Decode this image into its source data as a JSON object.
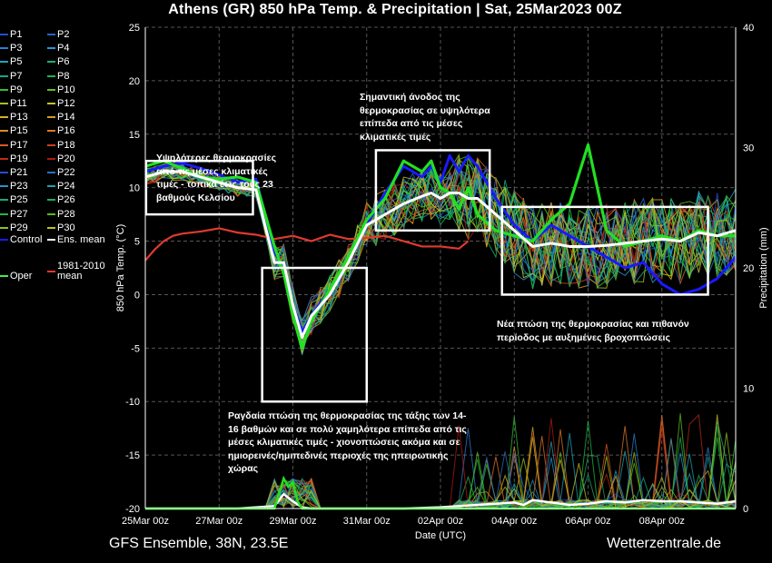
{
  "title": "Athens  (GR)  850 hPa Temp. & Precipitation | Sat, 25Mar2023 00Z",
  "footer": {
    "left": "GFS Ensemble, 38N, 23.5E",
    "right": "Wetterzentrale.de"
  },
  "legend": [
    {
      "label": "P1",
      "color": "#1f4fd6"
    },
    {
      "label": "P2",
      "color": "#2a62c8"
    },
    {
      "label": "P3",
      "color": "#2b7fd1"
    },
    {
      "label": "P4",
      "color": "#2a95d8"
    },
    {
      "label": "P5",
      "color": "#1aa6b8"
    },
    {
      "label": "P6",
      "color": "#17b07a"
    },
    {
      "label": "P7",
      "color": "#16a690"
    },
    {
      "label": "P8",
      "color": "#1cb84a"
    },
    {
      "label": "P9",
      "color": "#30c030"
    },
    {
      "label": "P10",
      "color": "#5ec020"
    },
    {
      "label": "P11",
      "color": "#9fc020"
    },
    {
      "label": "P12",
      "color": "#c8c030"
    },
    {
      "label": "P13",
      "color": "#d8b020"
    },
    {
      "label": "P14",
      "color": "#d89a20"
    },
    {
      "label": "P15",
      "color": "#d88a30"
    },
    {
      "label": "P16",
      "color": "#e07828"
    },
    {
      "label": "P17",
      "color": "#d85a20"
    },
    {
      "label": "P18",
      "color": "#c84020"
    },
    {
      "label": "P19",
      "color": "#c02818"
    },
    {
      "label": "P20",
      "color": "#b01818"
    },
    {
      "label": "P21",
      "color": "#2050d0"
    },
    {
      "label": "P22",
      "color": "#2a70c0"
    },
    {
      "label": "P23",
      "color": "#2a90c8"
    },
    {
      "label": "P24",
      "color": "#20a0b0"
    },
    {
      "label": "P25",
      "color": "#18a880"
    },
    {
      "label": "P26",
      "color": "#18b060"
    },
    {
      "label": "P27",
      "color": "#20b840"
    },
    {
      "label": "P28",
      "color": "#50c020"
    },
    {
      "label": "P29",
      "color": "#90c020"
    },
    {
      "label": "P30",
      "color": "#c0c020"
    },
    {
      "label": "Control",
      "color": "#1a1aff"
    },
    {
      "label": "Ens. mean",
      "color": "#ffffff"
    },
    {
      "label": "Oper",
      "color": "#44ee44"
    },
    {
      "label": "1981-2010 mean",
      "color": "#e03a30"
    }
  ],
  "annotations": {
    "a1": "Υψηλότερες θερμοκρασίες από τις μέσες κλιματικές τιμές - τοπικά έως τους 23 βαθμούς Κελσίου",
    "a2": "Σημαντική άνοδος της θερμοκρασίας σε υψηλότερα επίπεδα από τις μέσες κλιματικές τιμές",
    "a3": "Ραγδαία πτώση της θερμοκρασίας της τάξης των 14-16 βαθμών και σε πολύ χαμηλότερα επίπεδα από τις μέσες κλιματικές τιμές - χιονοπτώσεις ακόμα και σε ημιορεινές/ημιπεδινές περιοχές της ηπειρωτικής χώρας",
    "a4": "Νέα πτώση της θερμοκρασίας και πιθανόν περίοδος με αυξημένες βροχοπτώσεις"
  },
  "chart_data": {
    "type": "line",
    "xlabel": "Date (UTC)",
    "ylabel": "850 hPa Temp. (°C)",
    "y2label": "Precipitation (mm)",
    "ylim": [
      -20,
      25
    ],
    "y2lim": [
      0,
      40
    ],
    "xlim": [
      0,
      384
    ],
    "x_unit": "hours since 25Mar 00z",
    "xticks": [
      {
        "x": 0,
        "label": "25Mar 00z"
      },
      {
        "x": 48,
        "label": "27Mar 00z"
      },
      {
        "x": 96,
        "label": "29Mar 00z"
      },
      {
        "x": 144,
        "label": "31Mar 00z"
      },
      {
        "x": 192,
        "label": "02Apr 00z"
      },
      {
        "x": 240,
        "label": "04Apr 00z"
      },
      {
        "x": 288,
        "label": "06Apr 00z"
      },
      {
        "x": 336,
        "label": "08Apr 00z"
      }
    ],
    "yticks": [
      25,
      20,
      15,
      10,
      5,
      0,
      -5,
      -10,
      -15,
      -20
    ],
    "y2ticks": [
      40,
      30,
      20,
      10,
      0
    ],
    "grid": true,
    "series": [
      {
        "name": "1981-2010 mean",
        "color": "#e03a30",
        "width": 2.2,
        "x": [
          0,
          6,
          12,
          18,
          24,
          36,
          48,
          60,
          72,
          84,
          96,
          108,
          120,
          132,
          144,
          156,
          168,
          180,
          192,
          204,
          210
        ],
        "y": [
          3.2,
          4.2,
          5.0,
          5.5,
          5.7,
          5.9,
          6.2,
          5.8,
          5.6,
          5.2,
          5.5,
          5.0,
          5.6,
          5.2,
          5.3,
          5.5,
          5.0,
          4.5,
          4.5,
          4.3,
          5.0
        ]
      },
      {
        "name": "Control",
        "color": "#1a1aff",
        "width": 3,
        "x": [
          0,
          12,
          24,
          36,
          48,
          60,
          72,
          84,
          90,
          96,
          102,
          108,
          120,
          132,
          144,
          156,
          168,
          180,
          186,
          192,
          198,
          204,
          210,
          216,
          228,
          240,
          252,
          264,
          276,
          288,
          300,
          312,
          324,
          336,
          348,
          360,
          372,
          384
        ],
        "y": [
          11.5,
          12.0,
          12.3,
          11.8,
          11.2,
          10.5,
          10.8,
          4.0,
          2.5,
          -1.0,
          -3.5,
          -2.0,
          0.5,
          3.0,
          6.5,
          9.5,
          12.0,
          11.0,
          12.0,
          10.5,
          13.0,
          11.5,
          13.0,
          12.0,
          9.0,
          6.5,
          5.0,
          6.5,
          5.5,
          4.5,
          3.5,
          2.5,
          3.0,
          1.0,
          0.0,
          0.5,
          1.5,
          3.5
        ]
      },
      {
        "name": "Oper",
        "color": "#22e022",
        "width": 3.2,
        "x": [
          0,
          12,
          24,
          36,
          48,
          60,
          72,
          84,
          90,
          96,
          102,
          108,
          120,
          132,
          144,
          156,
          168,
          180,
          186,
          192,
          198,
          204,
          210,
          216,
          228,
          240,
          252,
          264,
          276,
          288,
          300,
          312,
          324,
          336,
          348,
          360,
          372,
          384
        ],
        "y": [
          12.0,
          12.5,
          11.8,
          11.0,
          10.8,
          11.0,
          10.5,
          4.5,
          2.0,
          -2.0,
          -5.0,
          -2.5,
          0.5,
          3.5,
          7.0,
          9.0,
          12.5,
          11.5,
          12.5,
          10.0,
          9.5,
          8.0,
          10.0,
          7.5,
          6.0,
          5.5,
          5.0,
          7.0,
          8.5,
          14.0,
          6.0,
          4.5,
          5.0,
          5.5,
          5.0,
          6.0,
          5.5,
          5.5
        ]
      },
      {
        "name": "Ens. mean",
        "color": "#ffffff",
        "width": 3,
        "x": [
          0,
          12,
          24,
          36,
          48,
          60,
          72,
          84,
          90,
          96,
          102,
          108,
          120,
          132,
          144,
          156,
          168,
          180,
          186,
          192,
          198,
          204,
          210,
          216,
          228,
          240,
          252,
          264,
          276,
          288,
          300,
          312,
          324,
          336,
          348,
          360,
          372,
          384
        ],
        "y": [
          11.0,
          11.5,
          11.5,
          11.0,
          10.5,
          10.0,
          9.8,
          3.0,
          3.0,
          -1.0,
          -4.0,
          -2.0,
          0.0,
          3.0,
          6.5,
          7.5,
          8.5,
          9.2,
          9.5,
          9.0,
          9.5,
          9.5,
          9.0,
          9.0,
          7.5,
          6.0,
          4.5,
          4.8,
          4.5,
          4.5,
          4.6,
          4.8,
          5.0,
          5.2,
          5.0,
          5.8,
          5.5,
          6.0
        ]
      }
    ],
    "precip_mean": {
      "name": "Ens. mean precipitation",
      "color": "#ffffff",
      "x": [
        0,
        60,
        84,
        90,
        96,
        102,
        108,
        120,
        144,
        168,
        192,
        216,
        228,
        240,
        246,
        252,
        264,
        276,
        288,
        300,
        312,
        324,
        336,
        348,
        360,
        372,
        384
      ],
      "y": [
        0,
        0,
        0.2,
        1.2,
        0.6,
        0.1,
        0,
        0,
        0,
        0,
        0.1,
        0.3,
        0.4,
        0.5,
        0.3,
        0.7,
        0.5,
        0.3,
        0.4,
        0.6,
        0.5,
        0.7,
        0.6,
        0.6,
        0.5,
        0.4,
        0.6
      ]
    },
    "precip_oper": {
      "name": "Oper precipitation",
      "color": "#22e022",
      "x": [
        0,
        84,
        90,
        93,
        96,
        99,
        102,
        108,
        384
      ],
      "y": [
        0,
        0,
        2.5,
        1.8,
        2.2,
        0.6,
        0,
        0,
        0
      ]
    }
  }
}
